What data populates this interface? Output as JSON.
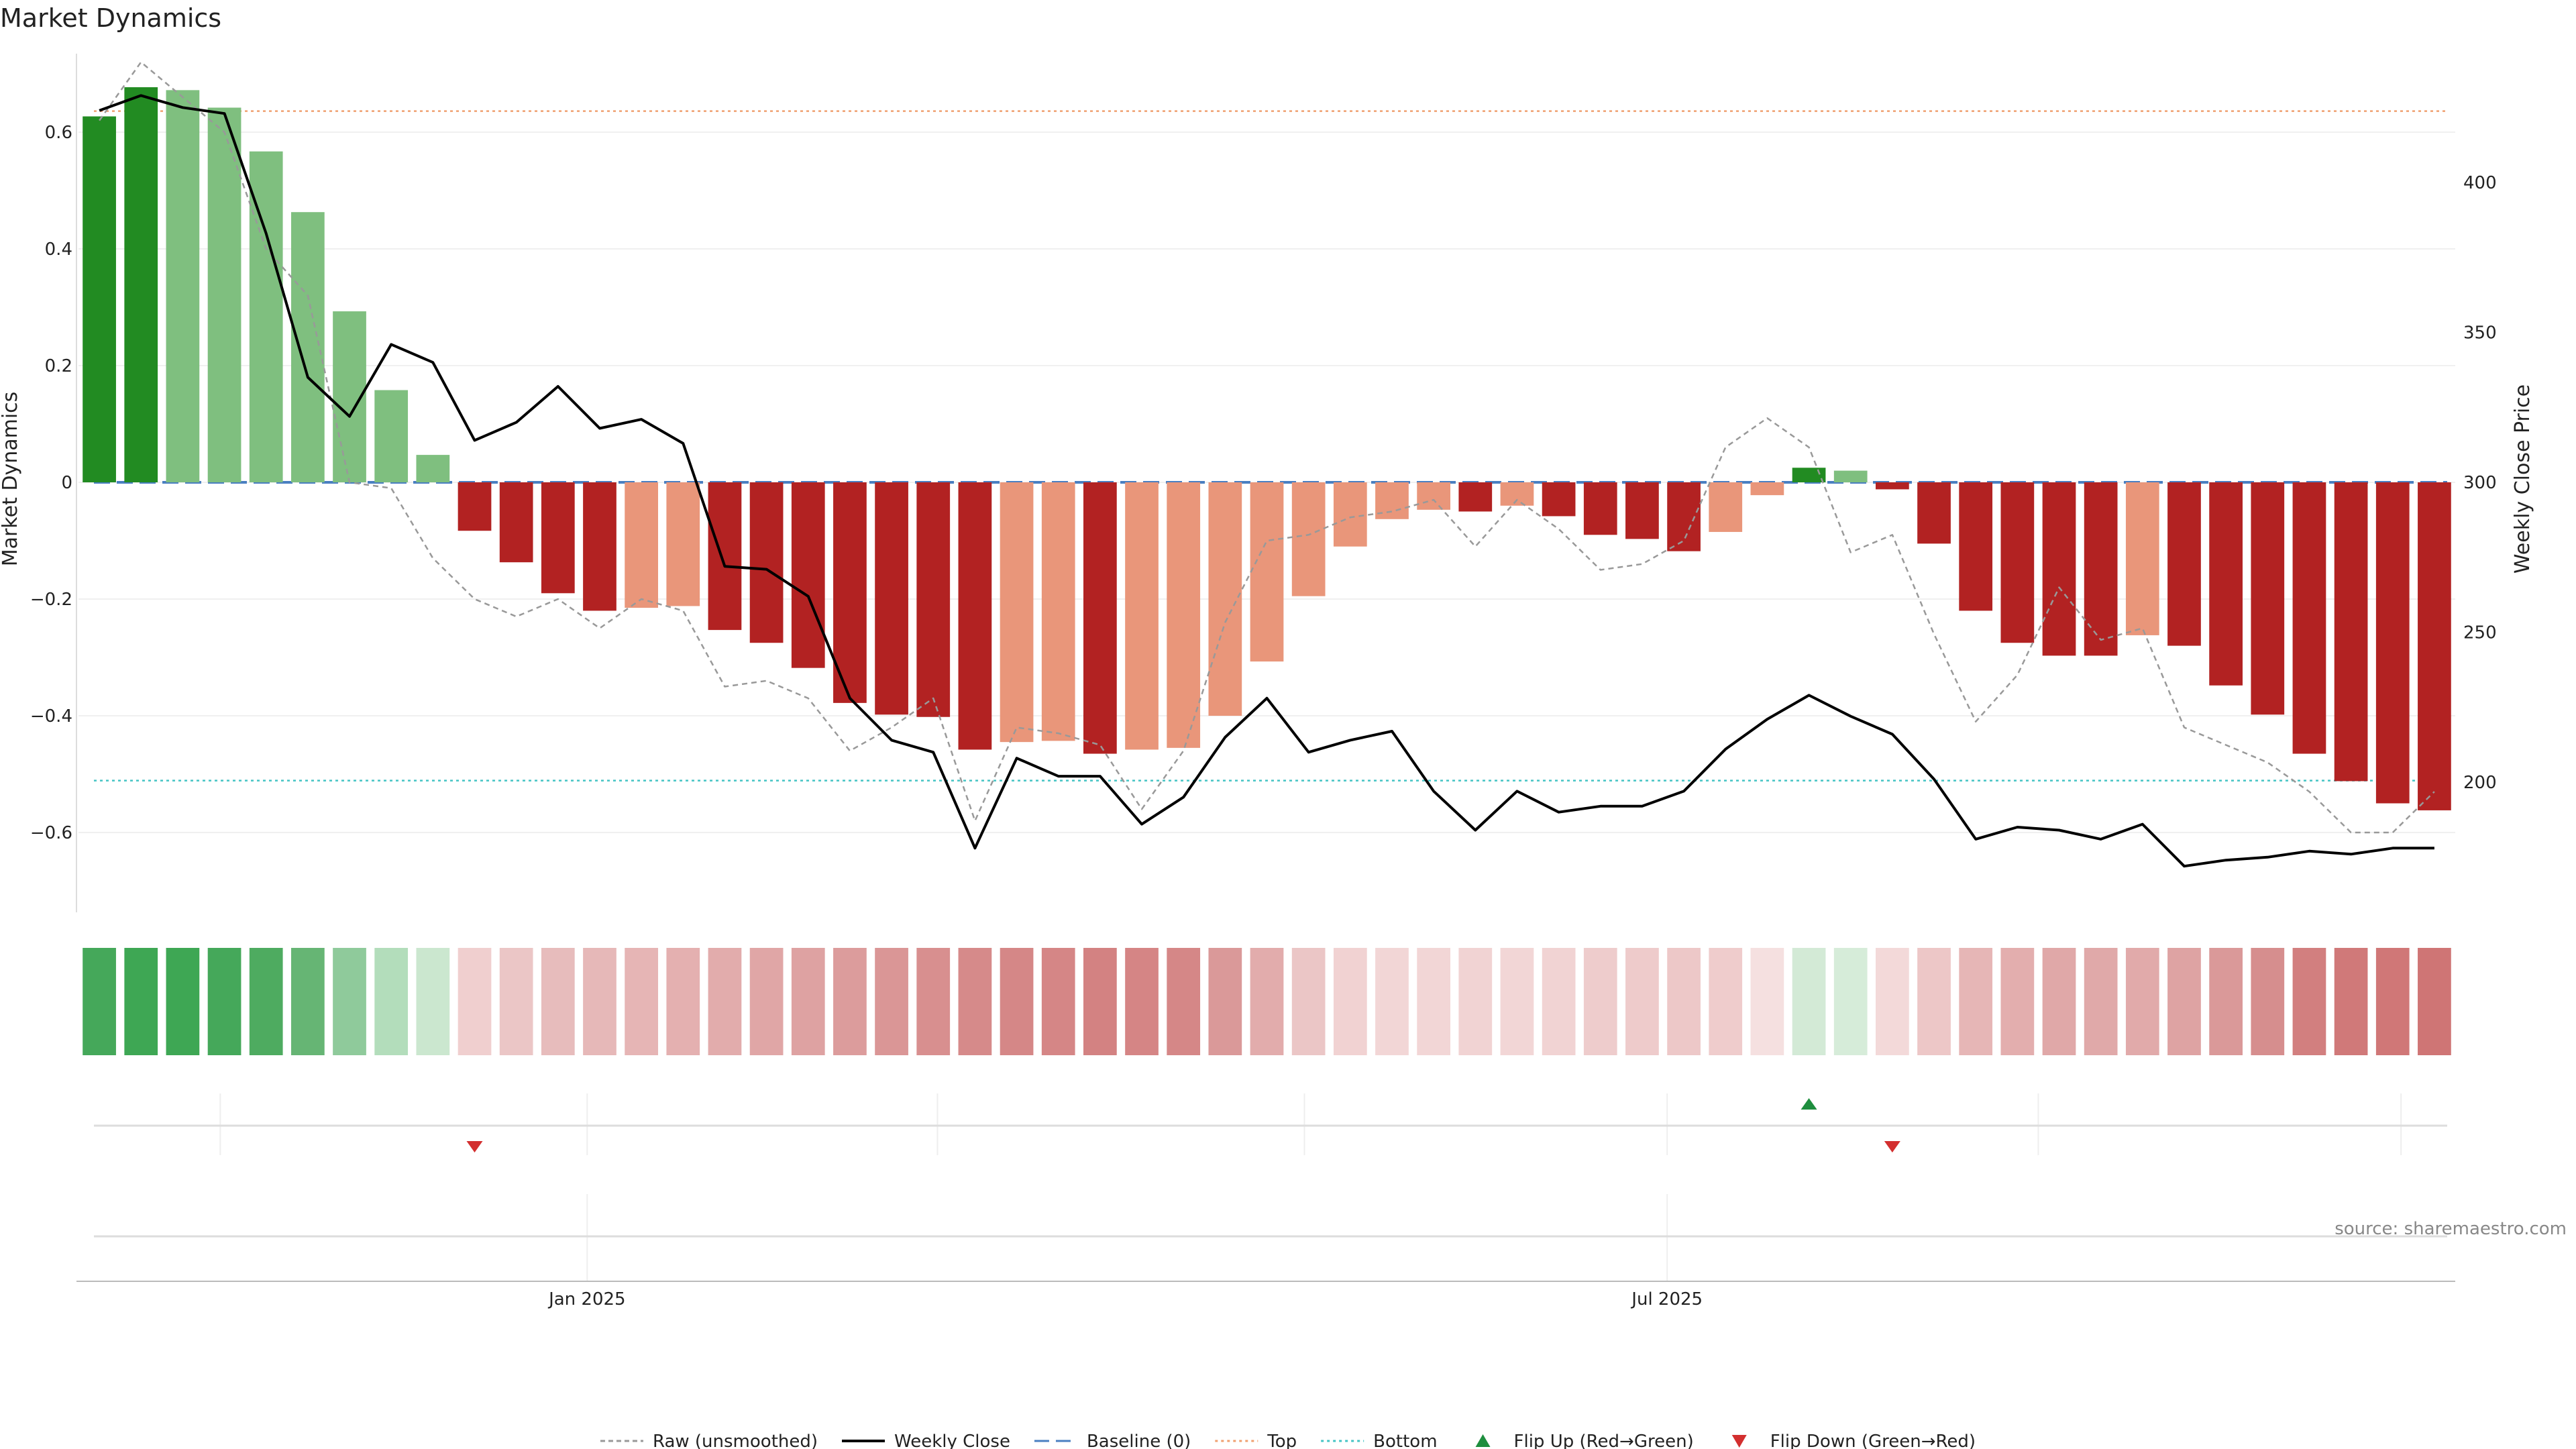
{
  "chart_data": {
    "type": "bar",
    "title": "Market Dynamics",
    "ylabel": "Market Dynamics",
    "y2label": "Weekly Close Price",
    "ylim": [
      -0.74,
      0.74
    ],
    "y2lim": [
      155,
      435
    ],
    "yticks": [
      -0.6,
      -0.4,
      -0.2,
      0,
      0.2,
      0.4,
      0.6
    ],
    "yticklabels": [
      "−0.6",
      "−0.4",
      "−0.2",
      "0",
      "0.2",
      "0.4",
      "0.6"
    ],
    "y2ticks": [
      200,
      250,
      300,
      350,
      400
    ],
    "y2ticklabels": [
      "200",
      "250",
      "300",
      "350",
      "400"
    ],
    "weeks": 57,
    "xtick_labels": [
      {
        "label": "Jan 2025",
        "week": 11.7
      },
      {
        "label": "Jul 2025",
        "week": 37.6
      }
    ],
    "minor_week_marks": [
      2.9,
      11.7,
      20.1,
      28.9,
      37.6,
      46.5,
      55.2
    ],
    "values": [
      0.627,
      0.677,
      0.672,
      0.642,
      0.567,
      0.463,
      0.293,
      0.158,
      0.047,
      -0.083,
      -0.137,
      -0.19,
      -0.22,
      -0.215,
      -0.212,
      -0.253,
      -0.275,
      -0.318,
      -0.378,
      -0.398,
      -0.402,
      -0.458,
      -0.445,
      -0.443,
      -0.465,
      -0.458,
      -0.455,
      -0.4,
      -0.307,
      -0.195,
      -0.11,
      -0.063,
      -0.047,
      -0.05,
      -0.04,
      -0.058,
      -0.09,
      -0.097,
      -0.118,
      -0.085,
      -0.022,
      0.025,
      0.02,
      -0.012,
      -0.105,
      -0.22,
      -0.275,
      -0.297,
      -0.297,
      -0.262,
      -0.28,
      -0.348,
      -0.398,
      -0.465,
      -0.512,
      -0.55,
      -0.562
    ],
    "bar_colors": [
      "#228b22",
      "#228b22",
      "#7fbf7f",
      "#7fbf7f",
      "#7fbf7f",
      "#7fbf7f",
      "#7fbf7f",
      "#7fbf7f",
      "#7fbf7f",
      "#b22222",
      "#b22222",
      "#b22222",
      "#b22222",
      "#e9967a",
      "#e9967a",
      "#b22222",
      "#b22222",
      "#b22222",
      "#b22222",
      "#b22222",
      "#b22222",
      "#b22222",
      "#e9967a",
      "#e9967a",
      "#b22222",
      "#e9967a",
      "#e9967a",
      "#e9967a",
      "#e9967a",
      "#e9967a",
      "#e9967a",
      "#e9967a",
      "#e9967a",
      "#b22222",
      "#e9967a",
      "#b22222",
      "#b22222",
      "#b22222",
      "#b22222",
      "#e9967a",
      "#e9967a",
      "#228b22",
      "#7fbf7f",
      "#b22222",
      "#b22222",
      "#b22222",
      "#b22222",
      "#b22222",
      "#b22222",
      "#e9967a",
      "#b22222",
      "#b22222",
      "#b22222",
      "#b22222",
      "#b22222",
      "#b22222",
      "#b22222"
    ],
    "heat_colors": [
      "#45a85a",
      "#3ea754",
      "#3ea754",
      "#45a85a",
      "#4eab60",
      "#66b574",
      "#8fca9b",
      "#b3ddbb",
      "#cbe7cf",
      "#f0cfcf",
      "#ebc6c6",
      "#e7bcbc",
      "#e6b8b8",
      "#e6b5b5",
      "#e4b0b0",
      "#e2acac",
      "#e0a6a6",
      "#dea2a2",
      "#dc9c9c",
      "#da9696",
      "#d88f8f",
      "#d68a8a",
      "#d58787",
      "#d58686",
      "#d38282",
      "#d58585",
      "#d58787",
      "#da9999",
      "#e2acac",
      "#ebc6c6",
      "#f1d2d2",
      "#f2d6d6",
      "#f2d6d6",
      "#f1d3d3",
      "#f2d6d6",
      "#f1d3d3",
      "#eecccc",
      "#eecbcb",
      "#edc8c8",
      "#efcccc",
      "#f5e0e0",
      "#d3ead6",
      "#d6ecd9",
      "#f3d9d9",
      "#edc7c7",
      "#e6b6b6",
      "#e3aeae",
      "#e0a8a8",
      "#e0a9a9",
      "#e1aaaa",
      "#dea3a3",
      "#da9999",
      "#d68e8e",
      "#d27f7f",
      "#d07979",
      "#d07777",
      "#cf7575"
    ],
    "series": [
      {
        "name": "Raw (unsmoothed)",
        "style": "dashed",
        "color": "#999999",
        "values": [
          0.62,
          0.72,
          0.66,
          0.6,
          0.4,
          0.32,
          0.0,
          -0.01,
          -0.13,
          -0.2,
          -0.23,
          -0.2,
          -0.25,
          -0.2,
          -0.22,
          -0.35,
          -0.34,
          -0.37,
          -0.46,
          -0.42,
          -0.37,
          -0.58,
          -0.42,
          -0.43,
          -0.45,
          -0.56,
          -0.46,
          -0.24,
          -0.1,
          -0.09,
          -0.06,
          -0.05,
          -0.03,
          -0.11,
          -0.03,
          -0.08,
          -0.15,
          -0.14,
          -0.1,
          0.06,
          0.11,
          0.06,
          -0.12,
          -0.09,
          -0.26,
          -0.41,
          -0.33,
          -0.18,
          -0.27,
          -0.25,
          -0.42,
          -0.45,
          -0.48,
          -0.53,
          -0.6,
          -0.6,
          -0.53
        ]
      },
      {
        "name": "Weekly Close",
        "style": "solid",
        "color": "#000000",
        "values": [
          424,
          429,
          425,
          423,
          383,
          335,
          322,
          346,
          340,
          314,
          320,
          332,
          318,
          321,
          313,
          272,
          271,
          262,
          228,
          214,
          210,
          178,
          208,
          202,
          202,
          186,
          195,
          215,
          228,
          210,
          214,
          217,
          197,
          184,
          197,
          190,
          192,
          192,
          197,
          211,
          221,
          229,
          222,
          216,
          201,
          181,
          185,
          184,
          181,
          186,
          172,
          174,
          175,
          177,
          176,
          178,
          178
        ]
      }
    ],
    "reference_lines": [
      {
        "name": "Baseline (0)",
        "value": 0,
        "style": "dashed",
        "color": "#4a7fc1"
      },
      {
        "name": "Top",
        "value": 0.636,
        "style": "dotted",
        "color": "#f0a070"
      },
      {
        "name": "Bottom",
        "value": -0.511,
        "style": "dotted",
        "color": "#45c4c4"
      }
    ],
    "flip_markers": [
      {
        "type": "Flip Down (Green→Red)",
        "week": 9
      },
      {
        "type": "Flip Up (Red→Green)",
        "week": 41
      },
      {
        "type": "Flip Down (Green→Red)",
        "week": 43
      }
    ],
    "legend": [
      {
        "label": "Raw (unsmoothed)",
        "kind": "line-dashed",
        "color": "#999999"
      },
      {
        "label": "Weekly Close",
        "kind": "line-solid",
        "color": "#000000"
      },
      {
        "label": "Baseline (0)",
        "kind": "line-dashed-long",
        "color": "#4a7fc1"
      },
      {
        "label": "Top",
        "kind": "line-dotted",
        "color": "#f0a070"
      },
      {
        "label": "Bottom",
        "kind": "line-dotted",
        "color": "#45c4c4"
      },
      {
        "label": "Flip Up (Red→Green)",
        "kind": "triangle-up",
        "color": "#1e8e3e"
      },
      {
        "label": "Flip Down (Green→Red)",
        "kind": "triangle-down",
        "color": "#d32f2f"
      }
    ],
    "source": "source: sharemaestro.com"
  }
}
